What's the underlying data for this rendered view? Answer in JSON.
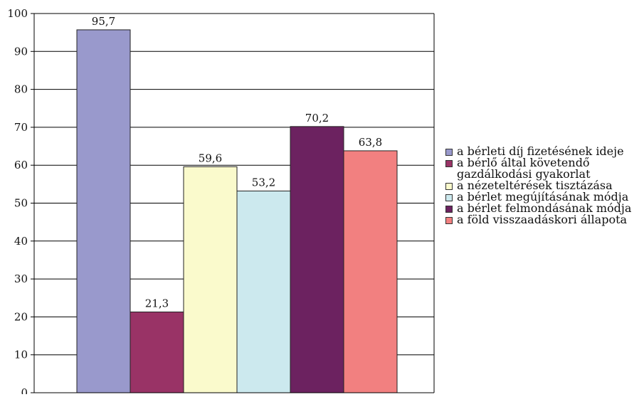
{
  "chart_data": {
    "type": "bar",
    "categories": [
      "a bérleti díj fizetésének ideje",
      "a bérlő által követendő gazdálkodási gyakorlat",
      "a nézeteltérések tisztázása",
      "a bérlet megújításának módja",
      "a bérlet felmondásának módja",
      "a föld visszaadáskori állapota"
    ],
    "values": [
      95.7,
      21.3,
      59.6,
      53.2,
      70.2,
      63.8
    ],
    "value_labels": [
      "95,7",
      "21,3",
      "59,6",
      "53,2",
      "70,2",
      "63,8"
    ],
    "colors": [
      "#9999cc",
      "#993366",
      "#fafacc",
      "#cce9ee",
      "#6c2260",
      "#f28080"
    ],
    "ylim": [
      0,
      100
    ],
    "yticks": [
      0,
      10,
      20,
      30,
      40,
      50,
      60,
      70,
      80,
      90,
      100
    ],
    "grid": true,
    "legend_position": "right",
    "title": "",
    "xlabel": "",
    "ylabel": ""
  },
  "legend": {
    "items": [
      {
        "label": "a bérleti díj fizetésének ideje",
        "color": "#9999cc"
      },
      {
        "label": "a bérlő által követendő gazdálkodási gyakorlat",
        "color": "#993366"
      },
      {
        "label": "a nézeteltérések tisztázása",
        "color": "#fafacc"
      },
      {
        "label": "a bérlet megújításának módja",
        "color": "#cce9ee"
      },
      {
        "label": "a bérlet felmondásának módja",
        "color": "#6c2260"
      },
      {
        "label": "a föld visszaadáskori állapota",
        "color": "#f28080"
      }
    ]
  }
}
